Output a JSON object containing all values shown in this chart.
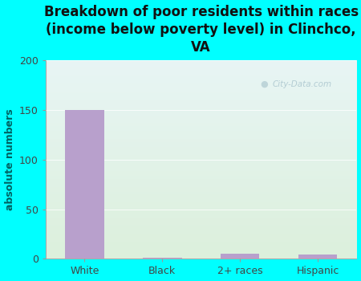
{
  "title": "Breakdown of poor residents within races\n(income below poverty level) in Clinchco,\nVA",
  "categories": [
    "White",
    "Black",
    "2+ races",
    "Hispanic"
  ],
  "values": [
    150,
    1,
    5,
    4
  ],
  "bar_color": "#b8a0cc",
  "ylabel": "absolute numbers",
  "ylim": [
    0,
    200
  ],
  "yticks": [
    0,
    50,
    100,
    150,
    200
  ],
  "background_outer": "#00FFFF",
  "bg_top": "#e8f5f0",
  "bg_bottom": "#e8f2e0",
  "title_fontsize": 12,
  "axis_label_fontsize": 9,
  "tick_fontsize": 9,
  "ylabel_color": "#006060",
  "title_color": "#111111",
  "tick_color": "#444444"
}
